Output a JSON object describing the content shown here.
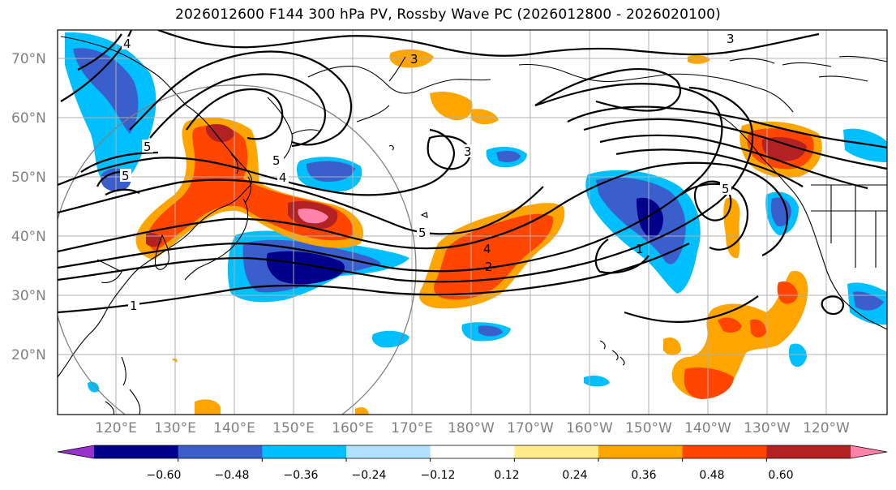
{
  "title": "2026012600 F144 300 hPa PV, Rossby Wave PC (2026012800 - 2026020100)",
  "map": {
    "lat_labels": [
      "70°N",
      "60°N",
      "50°N",
      "40°N",
      "30°N",
      "20°N"
    ],
    "lon_labels": [
      "120°E",
      "130°E",
      "140°E",
      "150°E",
      "160°E",
      "170°E",
      "180°W",
      "170°W",
      "160°W",
      "150°W",
      "140°W",
      "130°W",
      "120°W"
    ],
    "contour_labels": [
      "3",
      "4",
      "5",
      "5",
      "4",
      "5",
      "3",
      "5",
      "4",
      "2",
      "1",
      "1",
      "5",
      "3"
    ]
  },
  "colorbar": {
    "tick_labels": [
      "−0.60",
      "−0.48",
      "−0.36",
      "−0.24",
      "−0.12",
      "0.12",
      "0.24",
      "0.36",
      "0.48",
      "0.60"
    ],
    "colors": [
      "#9932CC",
      "#00008B",
      "#3A5FCD",
      "#00BFFF",
      "#B0E2FF",
      "#FFFFFF",
      "#FFEC8B",
      "#FFA500",
      "#FF4500",
      "#B22222",
      "#FF82AB"
    ]
  }
}
